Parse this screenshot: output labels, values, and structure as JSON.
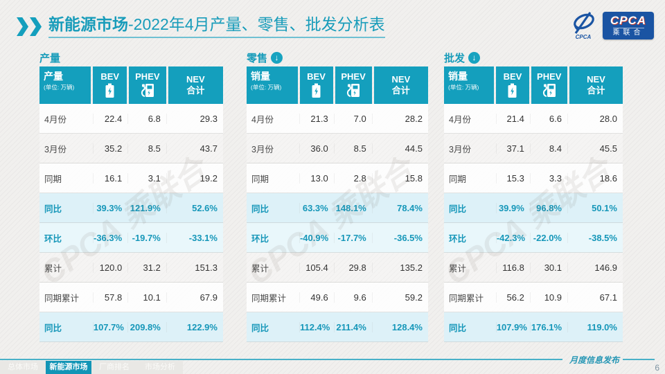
{
  "header": {
    "title_bold": "新能源市场",
    "title_rest": "-2022年4月产量、零售、批发分析表"
  },
  "logo": {
    "emblem_text": "CPCA",
    "box_title": "CPCA",
    "box_subtitle": "乘联合",
    "watermark": "CPCA 乘联合"
  },
  "colors": {
    "teal": "#149fbd",
    "teal_active_tab": "#1295b6",
    "pct_text": "#1697b9",
    "pct_row_bg": "#ddf1f8",
    "logo_blue": "#1a54a3"
  },
  "icons": {
    "arrow_glyph": "↓"
  },
  "sections": [
    {
      "title": "产量",
      "arrow": false,
      "unit_label": "产量",
      "unit_sub": "(单位: 万辆)",
      "columns": {
        "bev": "BEV",
        "phev": "PHEV",
        "nev_top": "NEV",
        "nev_bottom": "合计"
      },
      "rows": [
        {
          "label": "4月份",
          "values": [
            "22.4",
            "6.8",
            "29.3"
          ],
          "style": "plain"
        },
        {
          "label": "3月份",
          "values": [
            "35.2",
            "8.5",
            "43.7"
          ],
          "style": "alt"
        },
        {
          "label": "同期",
          "values": [
            "16.1",
            "3.1",
            "19.2"
          ],
          "style": "plain"
        },
        {
          "label": "同比",
          "values": [
            "39.3%",
            "121.9%",
            "52.6%"
          ],
          "style": "pct"
        },
        {
          "label": "环比",
          "values": [
            "-36.3%",
            "-19.7%",
            "-33.1%"
          ],
          "style": "pct2"
        },
        {
          "label": "累计",
          "values": [
            "120.0",
            "31.2",
            "151.3"
          ],
          "style": "alt"
        },
        {
          "label": "同期累计",
          "values": [
            "57.8",
            "10.1",
            "67.9"
          ],
          "style": "plain"
        },
        {
          "label": "同比",
          "values": [
            "107.7%",
            "209.8%",
            "122.9%"
          ],
          "style": "pct"
        }
      ]
    },
    {
      "title": "零售",
      "arrow": true,
      "unit_label": "销量",
      "unit_sub": "(单位: 万辆)",
      "columns": {
        "bev": "BEV",
        "phev": "PHEV",
        "nev_top": "NEV",
        "nev_bottom": "合计"
      },
      "rows": [
        {
          "label": "4月份",
          "values": [
            "21.3",
            "7.0",
            "28.2"
          ],
          "style": "plain"
        },
        {
          "label": "3月份",
          "values": [
            "36.0",
            "8.5",
            "44.5"
          ],
          "style": "alt"
        },
        {
          "label": "同期",
          "values": [
            "13.0",
            "2.8",
            "15.8"
          ],
          "style": "plain"
        },
        {
          "label": "同比",
          "values": [
            "63.3%",
            "148.1%",
            "78.4%"
          ],
          "style": "pct"
        },
        {
          "label": "环比",
          "values": [
            "-40.9%",
            "-17.7%",
            "-36.5%"
          ],
          "style": "pct2"
        },
        {
          "label": "累计",
          "values": [
            "105.4",
            "29.8",
            "135.2"
          ],
          "style": "alt"
        },
        {
          "label": "同期累计",
          "values": [
            "49.6",
            "9.6",
            "59.2"
          ],
          "style": "plain"
        },
        {
          "label": "同比",
          "values": [
            "112.4%",
            "211.4%",
            "128.4%"
          ],
          "style": "pct"
        }
      ]
    },
    {
      "title": "批发",
      "arrow": true,
      "unit_label": "销量",
      "unit_sub": "(单位: 万辆)",
      "columns": {
        "bev": "BEV",
        "phev": "PHEV",
        "nev_top": "NEV",
        "nev_bottom": "合计"
      },
      "rows": [
        {
          "label": "4月份",
          "values": [
            "21.4",
            "6.6",
            "28.0"
          ],
          "style": "plain"
        },
        {
          "label": "3月份",
          "values": [
            "37.1",
            "8.4",
            "45.5"
          ],
          "style": "alt"
        },
        {
          "label": "同期",
          "values": [
            "15.3",
            "3.3",
            "18.6"
          ],
          "style": "plain"
        },
        {
          "label": "同比",
          "values": [
            "39.9%",
            "96.8%",
            "50.1%"
          ],
          "style": "pct"
        },
        {
          "label": "环比",
          "values": [
            "-42.3%",
            "-22.0%",
            "-38.5%"
          ],
          "style": "pct2"
        },
        {
          "label": "累计",
          "values": [
            "116.8",
            "30.1",
            "146.9"
          ],
          "style": "alt"
        },
        {
          "label": "同期累计",
          "values": [
            "56.2",
            "10.9",
            "67.1"
          ],
          "style": "plain"
        },
        {
          "label": "同比",
          "values": [
            "107.9%",
            "176.1%",
            "119.0%"
          ],
          "style": "pct"
        }
      ]
    }
  ],
  "footer": {
    "note": "月度信息发布",
    "page_number": "6",
    "tabs": [
      {
        "label": "总体市场",
        "active": false
      },
      {
        "label": "新能源市场",
        "active": true
      },
      {
        "label": "厂商排名",
        "active": false
      },
      {
        "label": "市场分析",
        "active": false
      }
    ]
  }
}
